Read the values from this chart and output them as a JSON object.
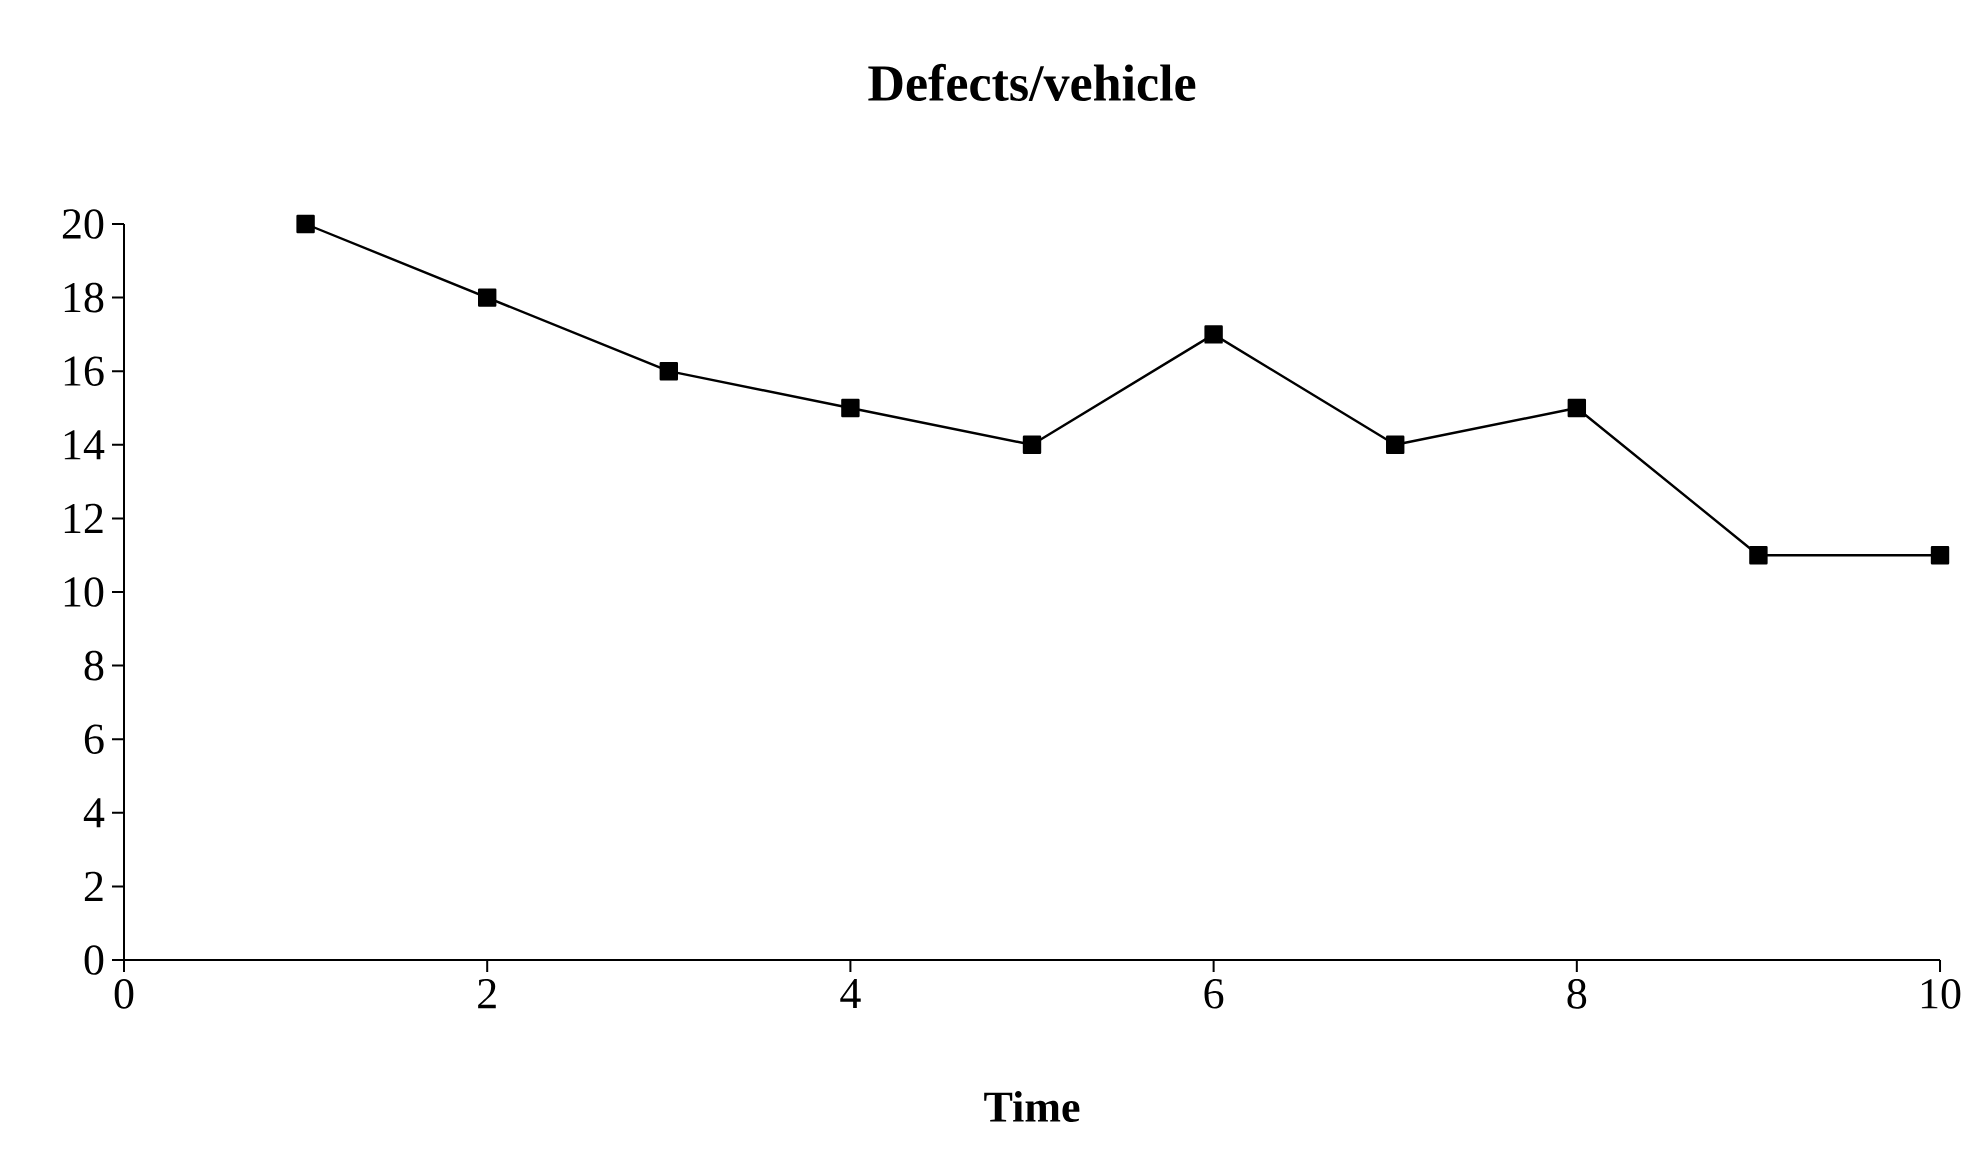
{
  "chart_data": {
    "type": "line",
    "title": "Defects/vehicle",
    "xlabel": "Time",
    "x": [
      1,
      2,
      3,
      4,
      5,
      6,
      7,
      8,
      9,
      10
    ],
    "series": [
      {
        "color": "#000000",
        "values": [
          20,
          18,
          16,
          15,
          14,
          17,
          14,
          15,
          11,
          11
        ]
      }
    ],
    "xlim": [
      0,
      10
    ],
    "xticks": [
      0,
      2,
      4,
      6,
      8,
      10
    ],
    "ylim": [
      0,
      20
    ],
    "yticks": [
      0,
      2,
      4,
      6,
      8,
      10,
      12,
      14,
      16,
      18,
      20
    ],
    "marker": "square",
    "line_style": "solid"
  }
}
